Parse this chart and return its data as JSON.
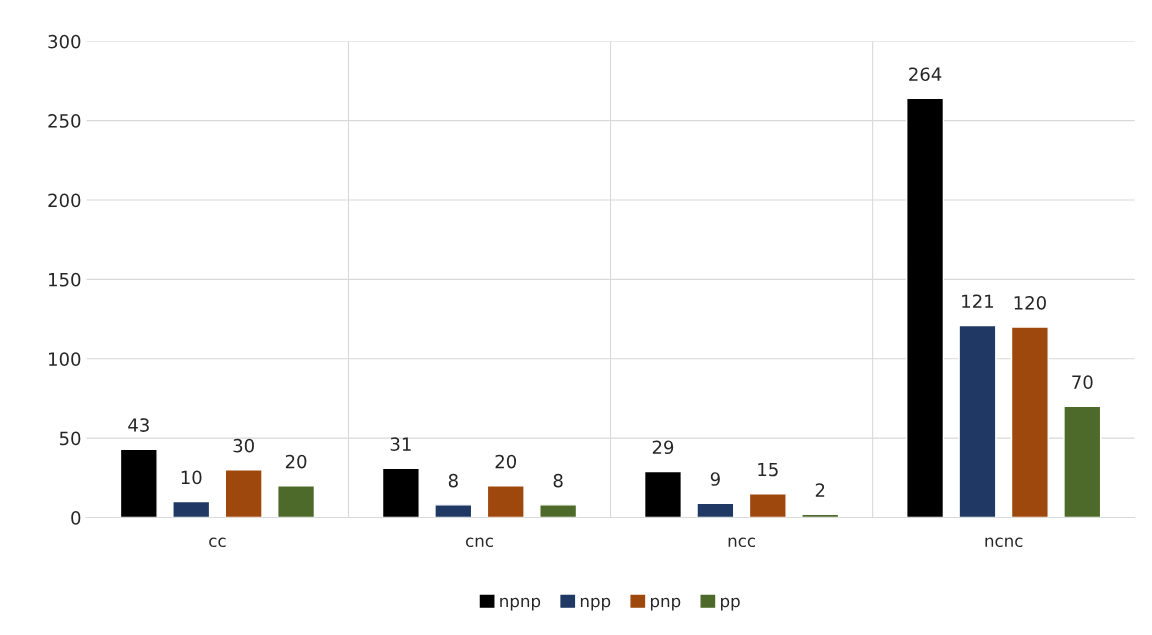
{
  "chart_data": {
    "type": "bar",
    "categories": [
      "cc",
      "cnc",
      "ncc",
      "ncnc"
    ],
    "series": [
      {
        "name": "npnp",
        "color": "#000000",
        "values": [
          43,
          31,
          29,
          264
        ]
      },
      {
        "name": "npp",
        "color": "#1f3864",
        "values": [
          10,
          8,
          9,
          121
        ]
      },
      {
        "name": "pnp",
        "color": "#9e480e",
        "values": [
          30,
          20,
          15,
          120
        ]
      },
      {
        "name": "pp",
        "color": "#4e6a2a",
        "values": [
          20,
          8,
          2,
          70
        ]
      }
    ],
    "ylim": [
      0,
      300
    ],
    "yticks": [
      0,
      50,
      100,
      150,
      200,
      250,
      300
    ],
    "grid": true,
    "legend": "bottom",
    "data_labels": true
  }
}
